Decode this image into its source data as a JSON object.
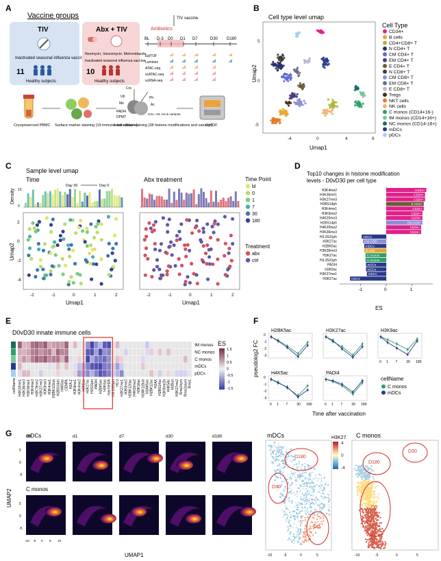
{
  "panels": {
    "A": {
      "label": "A",
      "title": "Vaccine groups",
      "tiv": {
        "title": "TIV",
        "desc": "Inactivated seasonal influenza vaccine",
        "n": "11",
        "subjects": "Healthy subjects"
      },
      "abx": {
        "title": "Abx + TIV",
        "drugs": "Neomycin, Vancomycin, Metronidazole",
        "desc": "Inactivated seasonal influenza vaccine",
        "n": "10",
        "subjects": "Healthy subjects"
      },
      "timeline": {
        "antibiotics": "Antibiotics",
        "vaccine": "TIV vaccine",
        "timepoints": [
          "BL",
          "D-3",
          "D0",
          "D1",
          "D7",
          "D30",
          "D180"
        ],
        "assays": [
          "EpiTOF",
          "Luminex",
          "ATAC-seq",
          "scATAC-seq",
          "scRNA-seq"
        ]
      },
      "workflow": [
        {
          "text": "Cryopreserved PBMC"
        },
        {
          "text": "Surface marker staining (19 immune cell subsets)"
        },
        {
          "text": "Intracellular staining (38 histone modifications and variants)"
        },
        {
          "text": "CyTOF"
        }
      ],
      "histone_labels": [
        "Cro",
        "Ub",
        "Me",
        "PADI4",
        "DPMT",
        "Ph",
        "Ac",
        "H2A, H3, H4 & variants"
      ]
    },
    "B": {
      "label": "B",
      "title": "Cell type level umap",
      "xlabel": "Umap1",
      "ylabel": "Umap2",
      "xticks": [
        "-4",
        "0",
        "4",
        "8"
      ],
      "yticks": [
        "5",
        "0",
        "-5"
      ],
      "legend_title": "Cell Type",
      "legend": [
        {
          "name": "CD34+",
          "color": "#e0218a"
        },
        {
          "name": "B cells",
          "color": "#e8a62e"
        },
        {
          "name": "CD4+CD8+ T",
          "color": "#b0b436"
        },
        {
          "name": "N CD4+ T",
          "color": "#2a2d6b"
        },
        {
          "name": "CM CD4+ T",
          "color": "#5b6ad1"
        },
        {
          "name": "EM CD4+ T",
          "color": "#4e3a8a"
        },
        {
          "name": "E CD4+ T",
          "color": "#6d5a3a"
        },
        {
          "name": "N CD8+ T",
          "color": "#3b3b3b"
        },
        {
          "name": "CM CD8+ T",
          "color": "#8e8cd6"
        },
        {
          "name": "EM CD8+ T",
          "color": "#6b6b8a"
        },
        {
          "name": "E CD8+ T",
          "color": "#b9b9d6"
        },
        {
          "name": "Tregs",
          "color": "#4d2a1a"
        },
        {
          "name": "NKT cells",
          "color": "#e87a2a"
        },
        {
          "name": "NK cells",
          "color": "#f2b36a"
        },
        {
          "name": "C monos (CD14+16-)",
          "color": "#2e9e6a"
        },
        {
          "name": "IM monos (CD14+16+)",
          "color": "#7cc79a"
        },
        {
          "name": "NC monos (CD14-16+)",
          "color": "#1e6b5a"
        },
        {
          "name": "mDCs",
          "color": "#2a3a8a"
        },
        {
          "name": "pDCs",
          "color": "#a6cfee"
        }
      ]
    },
    "C": {
      "label": "C",
      "title": "Sample level umap",
      "sub_time": "Time",
      "sub_abx": "Abx treatment",
      "day30": "Day 30",
      "day0": "Day 0",
      "density": "Density",
      "xlabel": "Umap1",
      "ylabel": "Umap2",
      "xticks": [
        "-2",
        "-1",
        "0",
        "1",
        "2"
      ],
      "yticks": [
        "2",
        "0",
        "-2",
        "-4"
      ],
      "legend_time_title": "Time Point",
      "legend_time": [
        {
          "name": "bl",
          "color": "#e0e36a"
        },
        {
          "name": "0",
          "color": "#b8dc6c"
        },
        {
          "name": "1",
          "color": "#7acb7f"
        },
        {
          "name": "7",
          "color": "#4cb0a3"
        },
        {
          "name": "30",
          "color": "#3a79b0"
        },
        {
          "name": "180",
          "color": "#33408f"
        }
      ],
      "legend_trt_title": "Treatment",
      "legend_trt": [
        {
          "name": "abx",
          "color": "#d7505d"
        },
        {
          "name": "ctrl",
          "color": "#5e5aa8"
        }
      ]
    },
    "D": {
      "label": "D",
      "title1": "Top10 changes in histone modification",
      "title2": "levels - D0vD30 per cell type",
      "xlabel": "ES",
      "xticks": [
        "-1",
        "0",
        "1"
      ],
      "xlim": [
        -1.8,
        1.8
      ]
    },
    "E": {
      "label": "E",
      "title": "D0vD30 innate immune cells",
      "rows": [
        "IM monos",
        "NC monos",
        "C monos",
        "mDCs",
        "pDCs"
      ],
      "cellname": "cellName",
      "es": "ES",
      "scale": [
        "1.5",
        "1",
        "0.5",
        "0",
        "-0.5",
        "-1",
        "-1.5"
      ],
      "cols": [
        "H4K20me1",
        "H3K36me3",
        "H3K36me1",
        "H3K4me3",
        "H3K79me2",
        "H3K27me3",
        "H3K9me3",
        "H3K4me1",
        "H2BK120ub",
        "H2BS14ph",
        "H4K5ac",
        "CENPA",
        "H2A.Z",
        "H3K9me1",
        "H3K4me2",
        "H3K9ac",
        "H3K27ac",
        "H3S31ph",
        "PADI4",
        "H2BK5ac",
        "H3K4ac",
        "macroH2A",
        "H3.3S31ph",
        "H1.0",
        "H3K27me1",
        "H3K9me2",
        "H2BK120ac",
        "H4K20me2",
        "H3K18ac",
        "H2AK119ub",
        "H2AK5ac",
        "H2BK12ac",
        "H2AX",
        "H2BS14ac",
        "H3K9me2b",
        "H4K5Ac",
        "H2Bub",
        "H3K27me2",
        "Rme2sym",
        "Rme2asym",
        "Rme1"
      ]
    },
    "F": {
      "label": "F",
      "ylabel": "pseudolog2 FC",
      "xlabel": "Time after vaccination",
      "xticks": [
        "0",
        "1",
        "7",
        "30",
        "180"
      ],
      "yticks": [
        "0",
        "-1",
        "-2",
        "-3"
      ],
      "legend_title": "cellName",
      "legend": [
        {
          "name": "C monos",
          "color": "#2e9e6a"
        },
        {
          "name": "mDCs",
          "color": "#2a3a8a"
        }
      ]
    },
    "G": {
      "label": "G",
      "row1": "mDCs",
      "row2": "C monos",
      "days": [
        "d0",
        "d1",
        "d7",
        "d30",
        "d180"
      ],
      "xticks": [
        "-10",
        "-5",
        "0",
        "5",
        "10"
      ],
      "yticks": [
        "5",
        "0",
        "-5"
      ],
      "xlabel": "UMAP1",
      "ylabel": "UMAP2",
      "big_left_title": "mDCs",
      "big_right_title": "C monos",
      "colorbar_title": "H3K27",
      "colorbar_ticks": [
        "4",
        "0",
        "-4"
      ],
      "annotations": [
        "D180",
        "D30",
        "D0"
      ],
      "big_xticks": [
        "-10",
        "-5",
        "0",
        "5"
      ],
      "big_yticks": [
        "5",
        "0",
        "-5"
      ]
    }
  },
  "chart_data": [
    {
      "type": "bar",
      "title": "Top10 changes in histone modification levels - D0vD30 per cell type",
      "xlabel": "ES",
      "xlim": [
        -1.8,
        1.8
      ],
      "orientation": "horizontal",
      "categories": [
        "H3K4me2",
        "H3K36me1",
        "H3K27me3",
        "H2BS14ph",
        "H3K4me1",
        "H3K9me2",
        "H4K20me3",
        "H2BS14ph",
        "H4K20me2",
        "H3K36me3",
        "H3.3S31ph",
        "H3K27ac",
        "H2BK5ac",
        "H3K36me3",
        "H3K27ac",
        "H3.3S31ph",
        "PADI4",
        "H3K9ac",
        "H3K27me1",
        "H3K27ac"
      ],
      "values": [
        1.55,
        1.5,
        1.5,
        1.45,
        1.45,
        1.4,
        1.4,
        1.4,
        1.35,
        1.35,
        -0.95,
        -0.9,
        -0.85,
        -0.85,
        -0.8,
        -0.8,
        -0.78,
        -0.78,
        -0.75,
        -1.4
      ],
      "bar_labels": [
        "CD34+",
        "CD34+",
        "CD34+",
        "E CD4+",
        "CD34+",
        "CD34+",
        "CD34+",
        "EM CD8+",
        "CD34+",
        "CD34+",
        "mDCs",
        "CM CD8+",
        "mDCs",
        "B cells",
        "C monos",
        "C monos",
        "mDCs",
        "mDCs",
        "mDCs",
        "mDCs"
      ],
      "bar_colors": [
        "#e0218a",
        "#e0218a",
        "#e0218a",
        "#6d5a3a",
        "#e0218a",
        "#e0218a",
        "#e0218a",
        "#8e8cd6",
        "#e0218a",
        "#e0218a",
        "#2a3a8a",
        "#8e8cd6",
        "#2a3a8a",
        "#e8a62e",
        "#2e9e6a",
        "#2e9e6a",
        "#2a3a8a",
        "#2a3a8a",
        "#2a3a8a",
        "#2a3a8a"
      ]
    },
    {
      "type": "line",
      "title": "H2BK5ac",
      "x": [
        "0",
        "1",
        "7",
        "30",
        "180"
      ],
      "ylim": [
        -3,
        0.5
      ],
      "series": [
        {
          "name": "C monos",
          "values": [
            0,
            -0.5,
            -1.3,
            -2.4,
            -0.8
          ]
        },
        {
          "name": "mDCs",
          "values": [
            0,
            -0.6,
            -1.5,
            -2.8,
            -1.2
          ]
        }
      ]
    },
    {
      "type": "line",
      "title": "H3K27ac",
      "x": [
        "0",
        "1",
        "7",
        "30",
        "180"
      ],
      "ylim": [
        -3,
        0.5
      ],
      "series": [
        {
          "name": "C monos",
          "values": [
            0,
            -0.7,
            -1.4,
            -2.6,
            -1.0
          ]
        },
        {
          "name": "mDCs",
          "values": [
            0,
            -0.5,
            -1.7,
            -2.9,
            -1.4
          ]
        }
      ]
    },
    {
      "type": "line",
      "title": "H3K9ac",
      "x": [
        "0",
        "1",
        "7",
        "30",
        "180"
      ],
      "ylim": [
        -3,
        0.5
      ],
      "series": [
        {
          "name": "C monos",
          "values": [
            0,
            -0.4,
            -1.0,
            -1.8,
            -0.3
          ]
        },
        {
          "name": "mDCs",
          "values": [
            0,
            -0.8,
            -1.6,
            -2.5,
            -0.6
          ]
        }
      ]
    },
    {
      "type": "line",
      "title": "H4K5ac",
      "x": [
        "0",
        "1",
        "7",
        "30",
        "180"
      ],
      "ylim": [
        -3,
        0.5
      ],
      "series": [
        {
          "name": "C monos",
          "values": [
            0,
            -0.4,
            -1.2,
            -2.3,
            -0.9
          ]
        },
        {
          "name": "mDCs",
          "values": [
            0,
            -0.5,
            -1.1,
            -2.5,
            -1.5
          ]
        }
      ]
    },
    {
      "type": "line",
      "title": "PADI4",
      "x": [
        "0",
        "1",
        "7",
        "30",
        "180"
      ],
      "ylim": [
        -3,
        0.5
      ],
      "series": [
        {
          "name": "C monos",
          "values": [
            0,
            -0.3,
            -0.9,
            -2.1,
            -0.5
          ]
        },
        {
          "name": "mDCs",
          "values": [
            0,
            -0.2,
            -0.7,
            -1.8,
            -0.2
          ]
        }
      ]
    }
  ]
}
